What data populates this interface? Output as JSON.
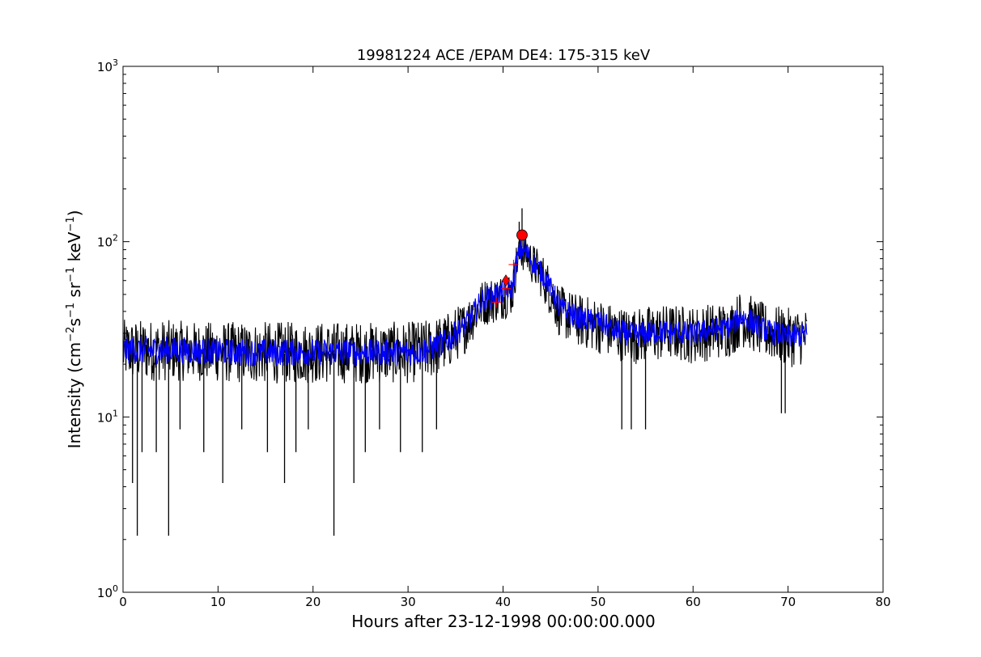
{
  "chart_data": {
    "type": "line",
    "title": "19981224 ACE /EPAM DE4: 175-315 keV",
    "xlabel": "Hours after 23-12-1998 00:00:00.000",
    "ylabel": {
      "prefix": "Intensity (cm",
      "sup1": "−2",
      "s": "s",
      "sup2": "−1",
      "sr": " sr",
      "sup3": "−1",
      "kev": " keV",
      "sup4": "−1",
      "suffix": ")"
    },
    "xlim": [
      0,
      80
    ],
    "ylim": [
      1,
      1000
    ],
    "yscale": "log",
    "x_ticks": [
      0,
      10,
      20,
      30,
      40,
      50,
      60,
      70,
      80
    ],
    "x_tick_labels": [
      "0",
      "10",
      "20",
      "30",
      "40",
      "50",
      "60",
      "70",
      "80"
    ],
    "y_ticks": [
      1,
      10,
      100,
      1000
    ],
    "y_tick_labels": [
      {
        "base": "10",
        "exp": "0"
      },
      {
        "base": "10",
        "exp": "1"
      },
      {
        "base": "10",
        "exp": "2"
      },
      {
        "base": "10",
        "exp": "3"
      }
    ],
    "grid": false,
    "series": [
      {
        "kind": "raw",
        "color": "#000000",
        "x": [
          0,
          4,
          8,
          12,
          16,
          20,
          24,
          28,
          30,
          32,
          34,
          36,
          37,
          38,
          39,
          40,
          41,
          41.5,
          42,
          42.5,
          43,
          44,
          45,
          46,
          48,
          50,
          52,
          54,
          56,
          58,
          60,
          62,
          64,
          65,
          66,
          67,
          68,
          70,
          72
        ],
        "y": [
          24,
          24,
          23.5,
          23,
          23,
          23,
          23,
          23,
          23,
          24,
          27,
          33,
          40,
          48,
          50,
          52,
          55,
          82,
          92,
          88,
          78,
          68,
          55,
          42,
          37,
          35,
          31,
          30,
          31,
          31,
          30,
          32,
          33,
          38,
          36,
          33,
          31,
          29,
          30
        ],
        "band_lo": [
          16,
          16,
          16,
          15.5,
          15.5,
          15.5,
          15.5,
          15.5,
          15.5,
          16,
          18,
          23,
          28,
          33,
          34,
          36,
          38,
          60,
          68,
          65,
          58,
          48,
          37,
          28,
          25,
          23,
          21,
          20,
          20.5,
          21,
          20,
          21,
          22,
          25,
          24,
          22,
          21,
          19,
          20
        ],
        "band_hi": [
          36,
          36,
          35,
          35,
          35,
          35,
          35,
          35,
          35,
          36,
          39,
          46,
          55,
          62,
          64,
          66,
          70,
          105,
          118,
          112,
          100,
          88,
          72,
          56,
          50,
          48,
          43,
          42,
          44,
          44,
          43,
          45,
          46,
          53,
          50,
          46,
          44,
          42,
          42
        ],
        "spikes": [
          {
            "x": 1.0,
            "y": 4.2
          },
          {
            "x": 1.5,
            "y": 2.1
          },
          {
            "x": 2.0,
            "y": 6.3
          },
          {
            "x": 3.5,
            "y": 6.3
          },
          {
            "x": 4.8,
            "y": 2.1
          },
          {
            "x": 6.0,
            "y": 8.5
          },
          {
            "x": 8.5,
            "y": 6.3
          },
          {
            "x": 10.5,
            "y": 4.2
          },
          {
            "x": 12.5,
            "y": 8.5
          },
          {
            "x": 15.2,
            "y": 6.3
          },
          {
            "x": 17.0,
            "y": 4.2
          },
          {
            "x": 18.2,
            "y": 6.3
          },
          {
            "x": 19.5,
            "y": 8.5
          },
          {
            "x": 22.2,
            "y": 2.1
          },
          {
            "x": 24.3,
            "y": 4.2
          },
          {
            "x": 25.5,
            "y": 6.3
          },
          {
            "x": 27.0,
            "y": 8.5
          },
          {
            "x": 29.2,
            "y": 6.3
          },
          {
            "x": 31.5,
            "y": 6.3
          },
          {
            "x": 33.0,
            "y": 8.5
          },
          {
            "x": 52.5,
            "y": 8.5
          },
          {
            "x": 53.5,
            "y": 8.5
          },
          {
            "x": 55.0,
            "y": 8.5
          },
          {
            "x": 69.3,
            "y": 10.5
          },
          {
            "x": 69.7,
            "y": 10.5
          },
          {
            "x": 42.0,
            "y": 155
          },
          {
            "x": 41.7,
            "y": 130
          }
        ]
      },
      {
        "kind": "smoothed",
        "color": "#0000ff",
        "x": [
          0,
          4,
          8,
          12,
          16,
          20,
          24,
          28,
          30,
          32,
          34,
          36,
          37,
          38,
          39,
          40,
          41,
          41.5,
          42,
          42.5,
          43,
          44,
          45,
          46,
          48,
          50,
          52,
          54,
          56,
          58,
          60,
          62,
          64,
          65,
          66,
          67,
          68,
          70,
          72
        ],
        "y": [
          24,
          24,
          23.5,
          23,
          23,
          23,
          23,
          23,
          23,
          24,
          27,
          33,
          40,
          48,
          50,
          52,
          55,
          82,
          92,
          88,
          78,
          68,
          55,
          42,
          37,
          35,
          31,
          30,
          31,
          31,
          30,
          32,
          33,
          38,
          36,
          33,
          31,
          29,
          30
        ],
        "band_lo": [
          20,
          20,
          20,
          19.5,
          19.5,
          19.5,
          19.5,
          19.5,
          19.5,
          20,
          22.5,
          28,
          34,
          40,
          42,
          44,
          47,
          70,
          78,
          75,
          67,
          58,
          47,
          35,
          31,
          29.5,
          26,
          25,
          26,
          26,
          25,
          27,
          28,
          32,
          30,
          28,
          26,
          24.5,
          25
        ],
        "band_hi": [
          29,
          29,
          28.5,
          28,
          28,
          28,
          28,
          28,
          28,
          29,
          32,
          39,
          47,
          56,
          58,
          60,
          63,
          94,
          106,
          101,
          90,
          78,
          63,
          49,
          43,
          41,
          36,
          35,
          36,
          36,
          35,
          37,
          38,
          44,
          42,
          38,
          36,
          34,
          35
        ]
      }
    ],
    "markers": [
      {
        "type": "plus",
        "x": 39.3,
        "y": 45,
        "color": "#ff0000"
      },
      {
        "type": "plus",
        "x": 40.3,
        "y": 54,
        "color": "#ff0000"
      },
      {
        "type": "plus",
        "x": 41.1,
        "y": 74,
        "color": "#ff0000"
      },
      {
        "type": "diamond",
        "x": 40.3,
        "y": 60,
        "color": "#ff0000"
      },
      {
        "type": "circle",
        "x": 42.0,
        "y": 109,
        "color": "#ff0000"
      }
    ]
  }
}
